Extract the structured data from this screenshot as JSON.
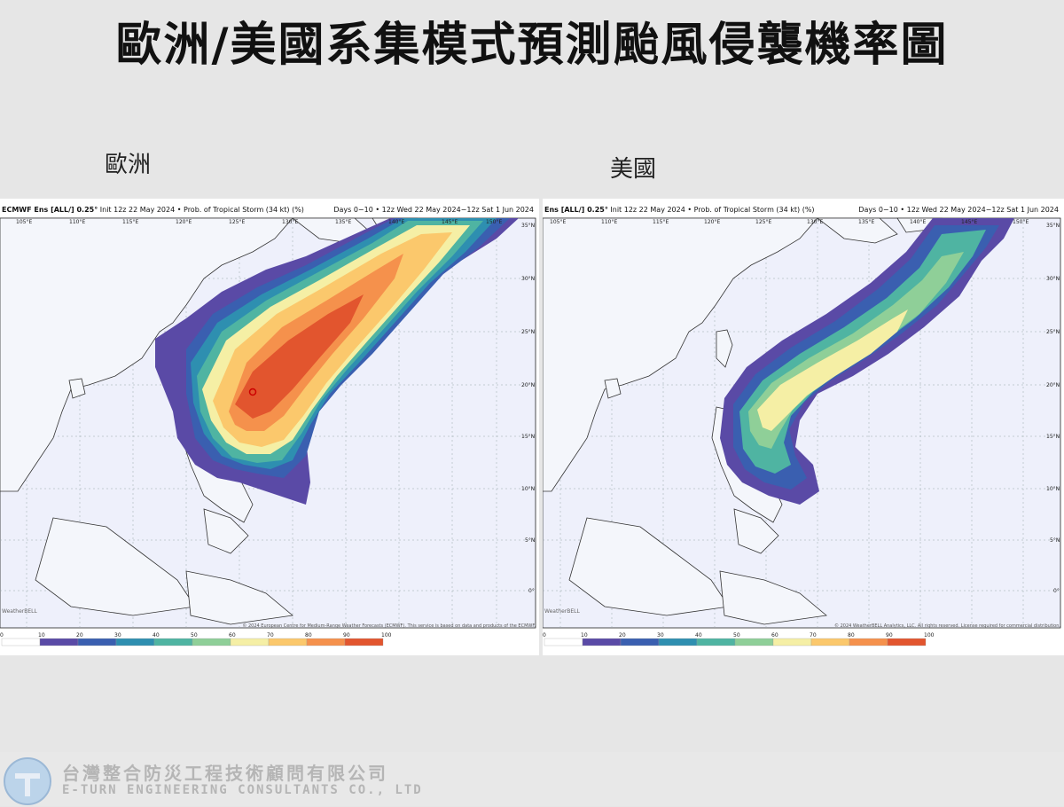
{
  "title": "歐洲/美國系集模式預測颱風侵襲機率圖",
  "panels": [
    {
      "label": "歐洲",
      "header_model": "ECMWF Ens [ALL/] 0.25°",
      "header_init": "Init 12z 22 May 2024 • Prob. of Tropical Storm (34 kt) (%)",
      "header_days": "Days 0−10 • 12z Wed 22 May 2024−12z Sat 1 Jun 2024",
      "credit": "© 2024 European Centre for Medium-Range Weather Forecasts (ECMWF). This service is based on data and products of the ECMWF.",
      "logo_text": "WeatherBELL"
    },
    {
      "label": "美國",
      "header_model": "Ens [ALL/] 0.25°",
      "header_init": "Init 12z 22 May 2024 • Prob. of Tropical Storm (34 kt) (%)",
      "header_days": "Days 0−10 • 12z Wed 22 May 2024−12z Sat 1 Jun 2024",
      "credit": "© 2024 WeatherBELL Analytics, LLC. All rights reserved. License required for commercial distribution.",
      "logo_text": "WeatherBELL"
    }
  ],
  "lon_labels": [
    "105°E",
    "110°E",
    "115°E",
    "120°E",
    "125°E",
    "130°E",
    "135°E",
    "140°E",
    "145°E",
    "150°E"
  ],
  "lat_labels": [
    "35°N",
    "30°N",
    "25°N",
    "20°N",
    "15°N",
    "10°N",
    "5°N",
    "0°"
  ],
  "colorbar": {
    "ticks": [
      "0",
      "10",
      "20",
      "30",
      "40",
      "50",
      "60",
      "70",
      "80",
      "90",
      "100"
    ],
    "colors": [
      "#ffffff",
      "#5a4aa6",
      "#3a5fb0",
      "#2e8fb0",
      "#4fb4a2",
      "#8fcf98",
      "#f5efa5",
      "#fbc86c",
      "#f5914c",
      "#e2552e",
      "#a0103a"
    ]
  },
  "footer": {
    "company_zh": "台灣整合防災工程技術顧問有限公司",
    "company_en": "E-TURN ENGINEERING CONSULTANTS CO., LTD"
  }
}
